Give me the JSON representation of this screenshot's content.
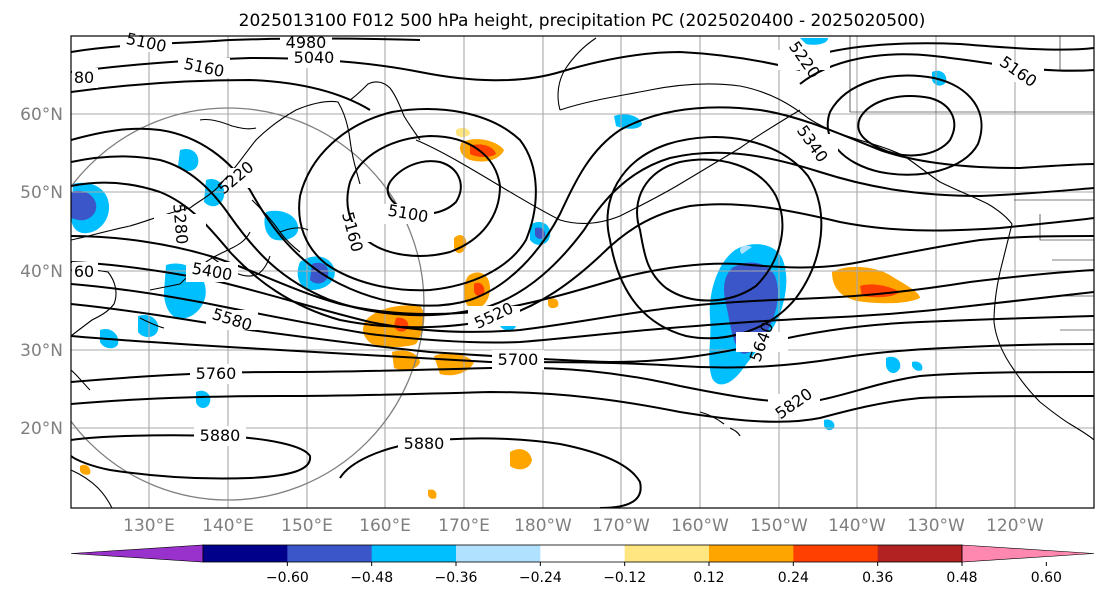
{
  "title": "2025013100 F012 500 hPa height, precipitation PC (2025020400 - 2025020500)",
  "lat_labels": [
    "60°N",
    "50°N",
    "40°N",
    "30°N",
    "20°N"
  ],
  "lon_labels": [
    "130°E",
    "140°E",
    "150°E",
    "160°E",
    "170°E",
    "180°W",
    "170°W",
    "160°W",
    "150°W",
    "140°W",
    "130°W",
    "120°W"
  ],
  "contour_labels": [
    "5100",
    "5160",
    "4980",
    "5040",
    "5220",
    "5160",
    "5340",
    "5280",
    "5400",
    "5580",
    "5100",
    "5160",
    "5220",
    "5520",
    "5700",
    "5640",
    "5760",
    "5880",
    "5880",
    "5820",
    "80",
    "60"
  ],
  "colorbar": {
    "ticks": [
      "−0.60",
      "−0.48",
      "−0.36",
      "−0.24",
      "−0.12",
      "0.12",
      "0.24",
      "0.36",
      "0.48",
      "0.60"
    ],
    "colors": [
      "#9932cc",
      "#00008b",
      "#3a56c8",
      "#00bfff",
      "#b0e2ff",
      "#ffffff",
      "#ffe680",
      "#ffa500",
      "#ff4000",
      "#b22222",
      "#ff88b0"
    ]
  },
  "colors": {
    "neg_strong": "#3a56c8",
    "neg_mid": "#00bfff",
    "neg_weak": "#b0e2ff",
    "pos_weak": "#ffe680",
    "pos_mid": "#ffa500",
    "pos_strong": "#ff4000"
  }
}
